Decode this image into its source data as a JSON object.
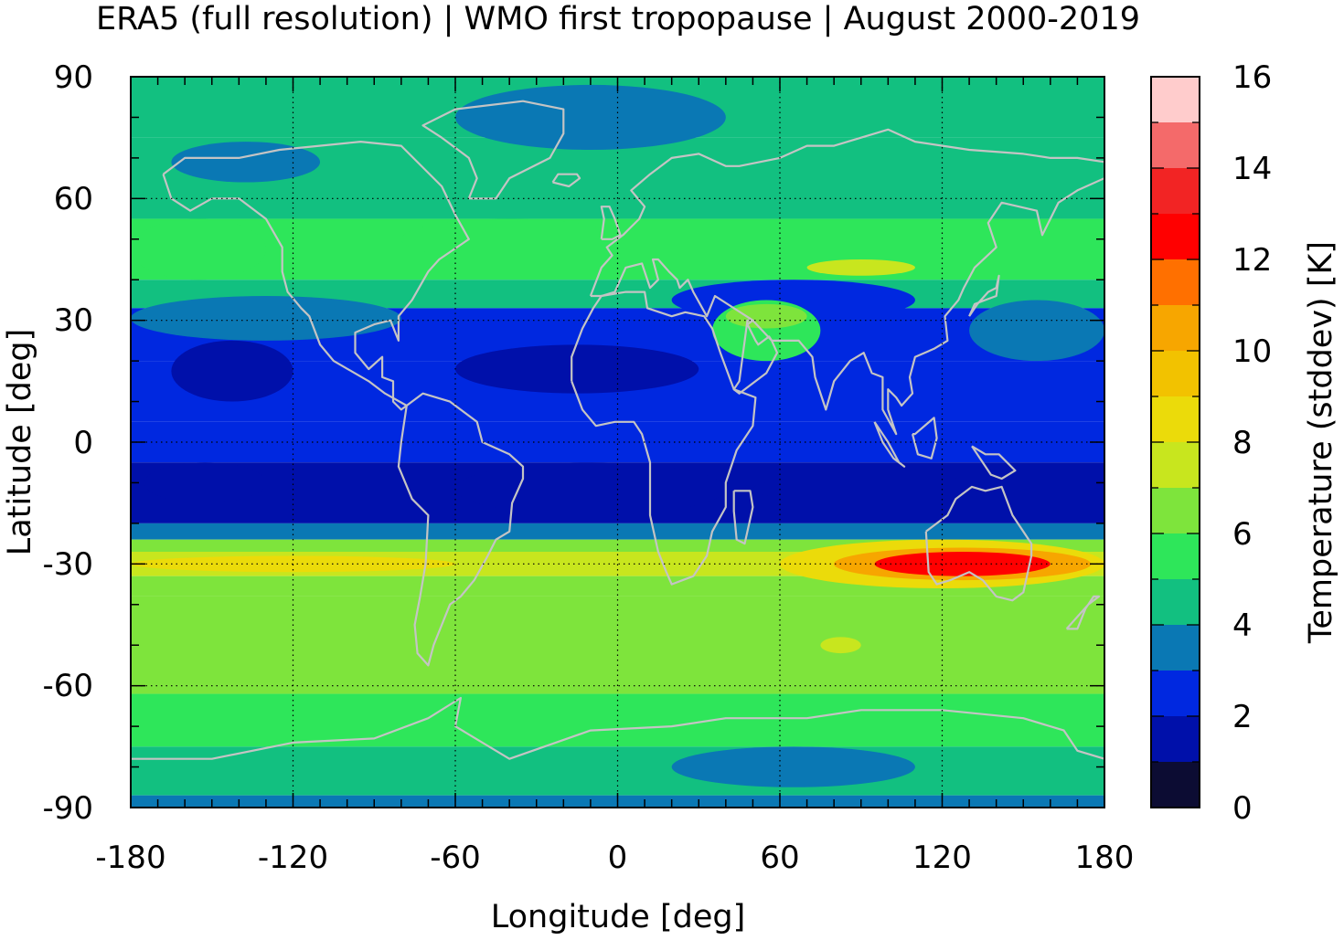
{
  "chart_data": {
    "type": "heatmap",
    "title": "ERA5 (full resolution) | WMO first tropopause | August 2000-2019",
    "xlabel": "Longitude [deg]",
    "ylabel": "Latitude [deg]",
    "colorbar_label": "Temperature (stddev) [K]",
    "xlim": [
      -180,
      180
    ],
    "ylim": [
      -90,
      90
    ],
    "x_ticks": [
      "-180",
      "-120",
      "-60",
      "0",
      "60",
      "120",
      "180"
    ],
    "y_ticks": [
      "90",
      "60",
      "30",
      "0",
      "-30",
      "-60",
      "-90"
    ],
    "colorbar_ticks": [
      "16",
      "14",
      "12",
      "10",
      "8",
      "6",
      "4",
      "2",
      "0"
    ],
    "grid": true,
    "colorbar_range": [
      0,
      16
    ],
    "colorbar_levels": [
      {
        "from": 0,
        "to": 1,
        "color": "#0c0c33"
      },
      {
        "from": 1,
        "to": 2,
        "color": "#0010aa"
      },
      {
        "from": 2,
        "to": 3,
        "color": "#0028e0"
      },
      {
        "from": 3,
        "to": 4,
        "color": "#0a78b4"
      },
      {
        "from": 4,
        "to": 5,
        "color": "#12c080"
      },
      {
        "from": 5,
        "to": 6,
        "color": "#2ee65a"
      },
      {
        "from": 6,
        "to": 7,
        "color": "#7ee43c"
      },
      {
        "from": 7,
        "to": 8,
        "color": "#c8e61e"
      },
      {
        "from": 8,
        "to": 9,
        "color": "#ebdb0a"
      },
      {
        "from": 9,
        "to": 10,
        "color": "#f2c200"
      },
      {
        "from": 10,
        "to": 11,
        "color": "#f7a600"
      },
      {
        "from": 11,
        "to": 12,
        "color": "#ff7000"
      },
      {
        "from": 12,
        "to": 13,
        "color": "#ff0000"
      },
      {
        "from": 13,
        "to": 14,
        "color": "#f22424"
      },
      {
        "from": 14,
        "to": 15,
        "color": "#f46a6a"
      },
      {
        "from": 15,
        "to": 16,
        "color": "#ffcccc"
      }
    ],
    "zonal_bands": [
      {
        "lat": [
          75,
          90
        ],
        "value": 4.5
      },
      {
        "lat": [
          55,
          75
        ],
        "value": 4.5
      },
      {
        "lat": [
          40,
          55
        ],
        "value": 5.5
      },
      {
        "lat": [
          33,
          40
        ],
        "value": 4.5
      },
      {
        "lat": [
          20,
          33
        ],
        "value": 2.5
      },
      {
        "lat": [
          5,
          20
        ],
        "value": 2.5
      },
      {
        "lat": [
          -5,
          5
        ],
        "value": 2.5
      },
      {
        "lat": [
          -20,
          -5
        ],
        "value": 1.5
      },
      {
        "lat": [
          -24,
          -20
        ],
        "value": 3.5
      },
      {
        "lat": [
          -27,
          -24
        ],
        "value": 6.5
      },
      {
        "lat": [
          -33,
          -27
        ],
        "value": 7.5
      },
      {
        "lat": [
          -38,
          -33
        ],
        "value": 6.5
      },
      {
        "lat": [
          -62,
          -38
        ],
        "value": 6.5
      },
      {
        "lat": [
          -75,
          -62
        ],
        "value": 5.5
      },
      {
        "lat": [
          -87,
          -75
        ],
        "value": 4.5
      },
      {
        "lat": [
          -90,
          -87
        ],
        "value": 3.5
      }
    ],
    "features": [
      {
        "lon": [
          -165,
          -110
        ],
        "lat": [
          64,
          74
        ],
        "value": 3.5
      },
      {
        "lon": [
          -60,
          40
        ],
        "lat": [
          72,
          88
        ],
        "value": 3.5
      },
      {
        "lon": [
          -180,
          -80
        ],
        "lat": [
          25,
          36
        ],
        "value": 3.5
      },
      {
        "lon": [
          -180,
          -130
        ],
        "lat": [
          40,
          55
        ],
        "value": 5.5
      },
      {
        "lon": [
          -80,
          0
        ],
        "lat": [
          45,
          55
        ],
        "value": 5.5
      },
      {
        "lon": [
          70,
          110
        ],
        "lat": [
          41,
          45
        ],
        "value": 7.5
      },
      {
        "lon": [
          20,
          110
        ],
        "lat": [
          30,
          40
        ],
        "value": 2.5
      },
      {
        "lon": [
          35,
          75
        ],
        "lat": [
          20,
          35
        ],
        "value": 5.5
      },
      {
        "lon": [
          40,
          70
        ],
        "lat": [
          28,
          34
        ],
        "value": 6.5
      },
      {
        "lon": [
          130,
          180
        ],
        "lat": [
          20,
          35
        ],
        "value": 3.5
      },
      {
        "lon": [
          -165,
          -120
        ],
        "lat": [
          10,
          25
        ],
        "value": 1.5
      },
      {
        "lon": [
          -60,
          30
        ],
        "lat": [
          12,
          24
        ],
        "value": 1.5
      },
      {
        "lon": [
          -175,
          -130
        ],
        "lat": [
          -15,
          -5
        ],
        "value": 1.5
      },
      {
        "lon": [
          -60,
          40
        ],
        "lat": [
          -18,
          -5
        ],
        "value": 1.5
      },
      {
        "lon": [
          50,
          140
        ],
        "lat": [
          -15,
          -8
        ],
        "value": 1.5
      },
      {
        "lon": [
          -180,
          -60
        ],
        "lat": [
          -32,
          -28
        ],
        "value": 8.5
      },
      {
        "lon": [
          60,
          180
        ],
        "lat": [
          -36,
          -24
        ],
        "value": 8.5
      },
      {
        "lon": [
          80,
          175
        ],
        "lat": [
          -34,
          -26
        ],
        "value": 10.5
      },
      {
        "lon": [
          95,
          160
        ],
        "lat": [
          -33,
          -27
        ],
        "value": 12.5
      },
      {
        "lon": [
          20,
          110
        ],
        "lat": [
          -85,
          -75
        ],
        "value": 3.5
      },
      {
        "lon": [
          75,
          90
        ],
        "lat": [
          -52,
          -48
        ],
        "value": 7.5
      }
    ]
  },
  "map_overlay": {
    "name": "coastlines",
    "color": "#c4c4c4"
  }
}
